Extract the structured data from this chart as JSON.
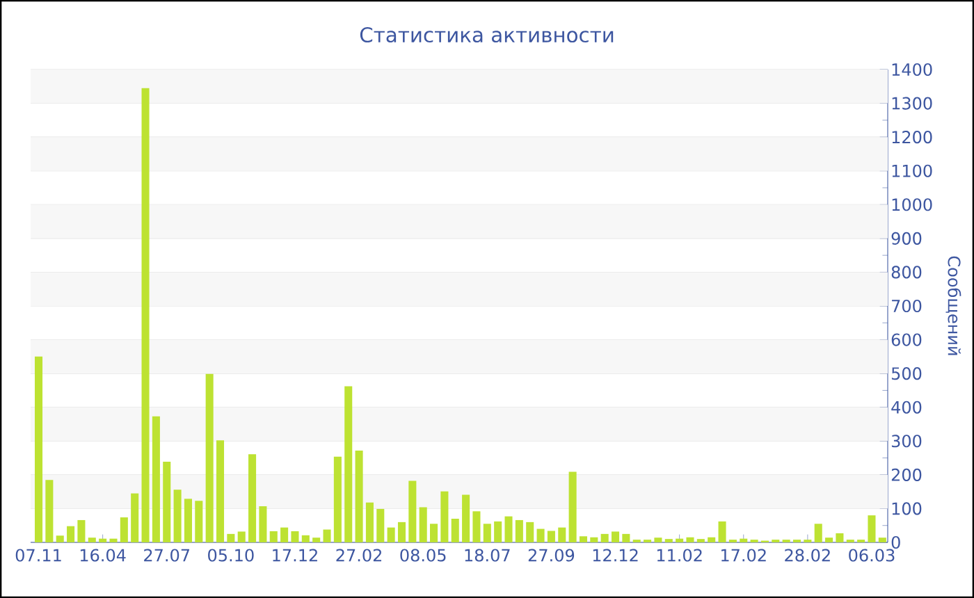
{
  "chart_data": {
    "type": "bar",
    "title": "Статистика активности",
    "ylabel": "Сообщений",
    "categories": [
      "07.11",
      null,
      null,
      null,
      null,
      null,
      "16.04",
      null,
      null,
      null,
      null,
      null,
      "27.07",
      null,
      null,
      null,
      null,
      null,
      "05.10",
      null,
      null,
      null,
      null,
      null,
      "17.12",
      null,
      null,
      null,
      null,
      null,
      "27.02",
      null,
      null,
      null,
      null,
      null,
      "08.05",
      null,
      null,
      null,
      null,
      null,
      "18.07",
      null,
      null,
      null,
      null,
      null,
      "27.09",
      null,
      null,
      null,
      null,
      null,
      "12.12",
      null,
      null,
      null,
      null,
      null,
      "11.02",
      null,
      null,
      null,
      null,
      null,
      "17.02",
      null,
      null,
      null,
      null,
      null,
      "28.02",
      null,
      null,
      null,
      null,
      null,
      "06.03",
      null
    ],
    "values": [
      550,
      185,
      20,
      48,
      66,
      14,
      11,
      11,
      74,
      145,
      1345,
      373,
      239,
      156,
      129,
      123,
      499,
      302,
      25,
      32,
      261,
      107,
      33,
      44,
      33,
      21,
      14,
      38,
      254,
      462,
      272,
      118,
      99,
      44,
      60,
      182,
      104,
      55,
      151,
      70,
      141,
      92,
      55,
      62,
      77,
      66,
      60,
      40,
      34,
      44,
      209,
      18,
      15,
      25,
      32,
      25,
      8,
      8,
      14,
      10,
      11,
      15,
      10,
      15,
      62,
      8,
      11,
      8,
      5,
      8,
      8,
      8,
      8,
      55,
      14,
      27,
      8,
      8,
      80,
      14
    ],
    "color": "#bde232",
    "ylim": [
      0,
      1400
    ],
    "yticks": [
      0,
      100,
      200,
      300,
      400,
      500,
      600,
      700,
      800,
      900,
      1000,
      1100,
      1200,
      1300,
      1400
    ],
    "grid": "y"
  }
}
